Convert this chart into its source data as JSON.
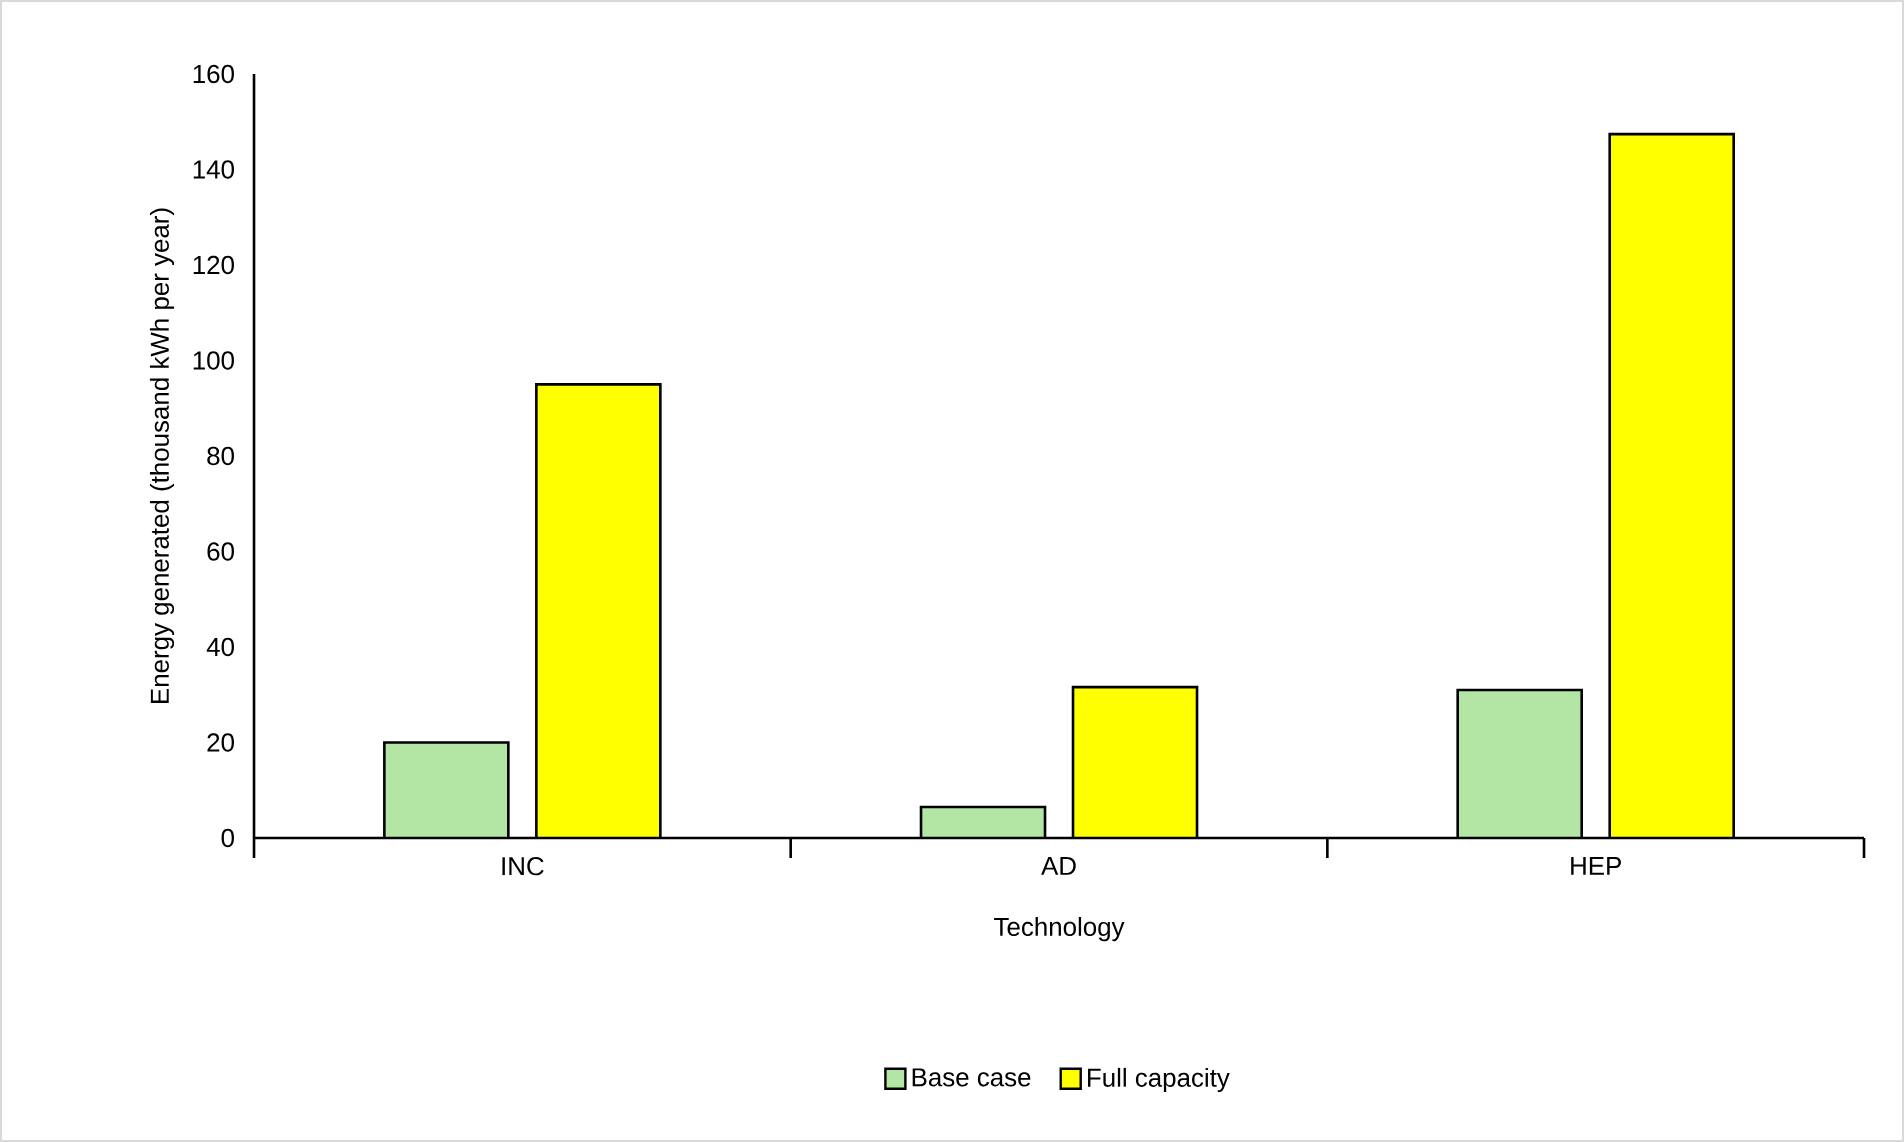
{
  "chart_data": {
    "type": "bar",
    "xlabel": "Technology",
    "ylabel": "Energy generated (thousand kWh per year)",
    "categories": [
      "INC",
      "AD",
      "HEP"
    ],
    "series": [
      {
        "name": "Base case",
        "color": "#b3e6a4",
        "values": [
          20,
          6.5,
          31
        ]
      },
      {
        "name": "Full capacity",
        "color": "#ffff00",
        "values": [
          95,
          31.6,
          147.4
        ]
      }
    ],
    "ylim": [
      0,
      160
    ],
    "yticks": [
      0,
      20,
      40,
      60,
      80,
      100,
      120,
      140,
      160
    ],
    "legend": "bottom"
  }
}
